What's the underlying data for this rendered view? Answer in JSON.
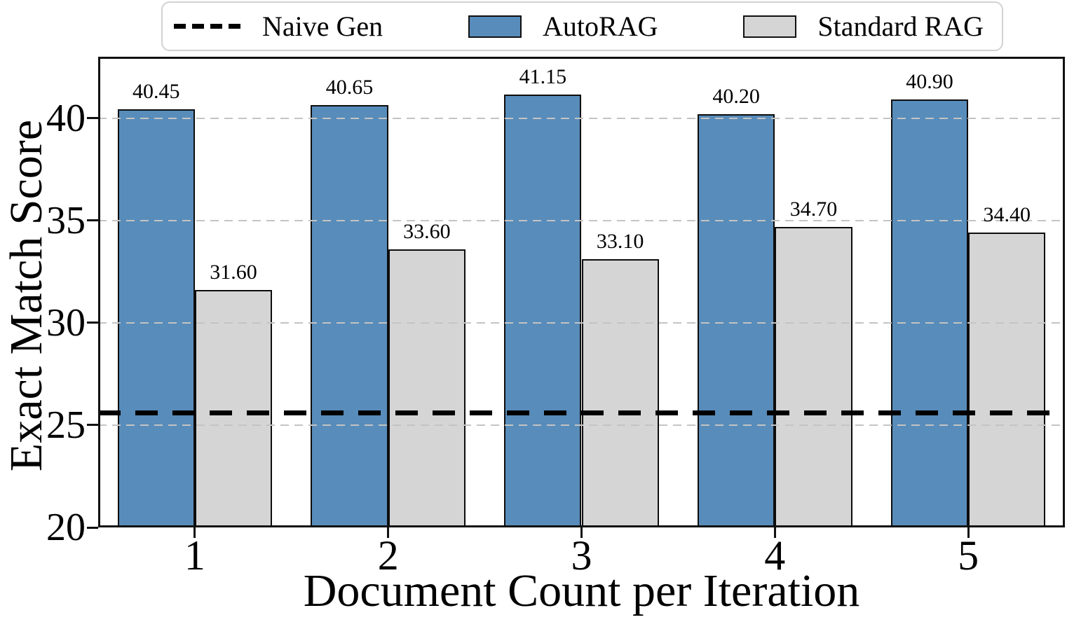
{
  "chart_data": {
    "type": "bar",
    "title": "",
    "xlabel": "Document Count per Iteration",
    "ylabel": "Exact Match Score",
    "categories": [
      1,
      2,
      3,
      4,
      5
    ],
    "series": [
      {
        "name": "AutoRAG",
        "color": "#588CBA",
        "values": [
          40.45,
          40.65,
          41.15,
          40.2,
          40.9
        ]
      },
      {
        "name": "Standard RAG",
        "color": "#D5D5D5",
        "values": [
          31.6,
          33.6,
          33.1,
          34.7,
          34.4
        ]
      }
    ],
    "reference_line": {
      "name": "Naive Gen",
      "value": 25.6,
      "style": "dashed",
      "color": "#000000"
    },
    "bar_label_format": "2dp",
    "xlim": [
      0.5,
      5.5
    ],
    "ylim": [
      20,
      43
    ],
    "yticks": [
      20,
      25,
      30,
      35,
      40
    ],
    "grid": {
      "axis": "y",
      "style": "dashed",
      "color": "#c4c4c4",
      "on_top": true
    },
    "legend_position": "top-outside",
    "bar_edge_color": "#0d0d0d",
    "bar_width_units": 0.4
  },
  "legend": {
    "items": [
      {
        "label": "Naive Gen",
        "swatch": "dashed-line"
      },
      {
        "label": "AutoRAG",
        "swatch": "blue-box"
      },
      {
        "label": "Standard RAG",
        "swatch": "gray-box"
      }
    ]
  }
}
